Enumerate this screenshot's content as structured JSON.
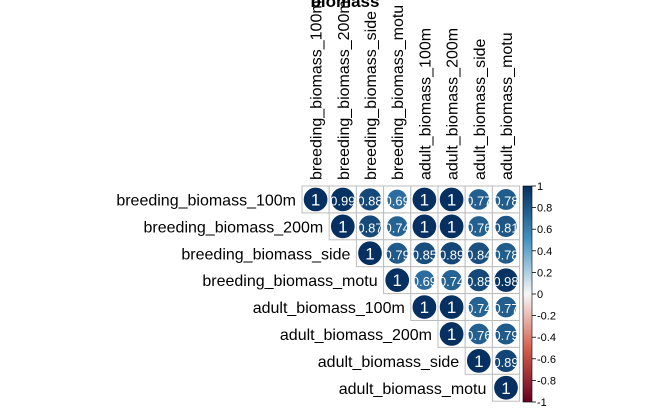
{
  "chart_data": {
    "type": "heatmap",
    "title": "biomass",
    "variables": [
      "breeding_biomass_100m",
      "breeding_biomass_200m",
      "breeding_biomass_side",
      "breeding_biomass_motu",
      "adult_biomass_100m",
      "adult_biomass_200m",
      "adult_biomass_side",
      "adult_biomass_motu"
    ],
    "matrix": [
      [
        1,
        0.99,
        0.88,
        0.69,
        1,
        1,
        0.77,
        0.78
      ],
      [
        null,
        1,
        0.87,
        0.74,
        1,
        1,
        0.76,
        0.81
      ],
      [
        null,
        null,
        1,
        0.79,
        0.85,
        0.89,
        0.84,
        0.78
      ],
      [
        null,
        null,
        null,
        1,
        0.69,
        0.74,
        0.88,
        0.98
      ],
      [
        null,
        null,
        null,
        null,
        1,
        1,
        0.74,
        0.77
      ],
      [
        null,
        null,
        null,
        null,
        null,
        1,
        0.76,
        0.79
      ],
      [
        null,
        null,
        null,
        null,
        null,
        null,
        1,
        0.89
      ],
      [
        null,
        null,
        null,
        null,
        null,
        null,
        null,
        1
      ]
    ],
    "cell_labels": [
      [
        "1",
        "0.99",
        "0.88",
        "0.69",
        "1",
        "1",
        "0.77",
        "0.78"
      ],
      [
        "",
        "1",
        "0.87",
        "0.74",
        "1",
        "1",
        "0.76",
        "0.81"
      ],
      [
        "",
        "",
        "1",
        "0.79",
        "0.85",
        "0.89",
        "0.84",
        "0.78"
      ],
      [
        "",
        "",
        "",
        "1",
        "0.69",
        "0.74",
        "0.88",
        "0.98"
      ],
      [
        "",
        "",
        "",
        "",
        "1",
        "1",
        "0.74",
        "0.77"
      ],
      [
        "",
        "",
        "",
        "",
        "",
        "1",
        "0.76",
        "0.79"
      ],
      [
        "",
        "",
        "",
        "",
        "",
        "",
        "1",
        "0.89"
      ],
      [
        "",
        "",
        "",
        "",
        "",
        "",
        "",
        "1"
      ]
    ],
    "legend": {
      "ticks": [
        "1",
        "0.8",
        "0.6",
        "0.4",
        "0.2",
        "0",
        "-0.2",
        "-0.4",
        "-0.6",
        "-0.8",
        "-1"
      ],
      "range": [
        -1,
        1
      ],
      "position": "right",
      "colors": {
        "neg": "#67001F",
        "neg_mid": "#D6604D",
        "zero": "#F7F7F7",
        "pos_mid": "#4393C3",
        "pos": "#053061"
      }
    },
    "grid": true
  }
}
